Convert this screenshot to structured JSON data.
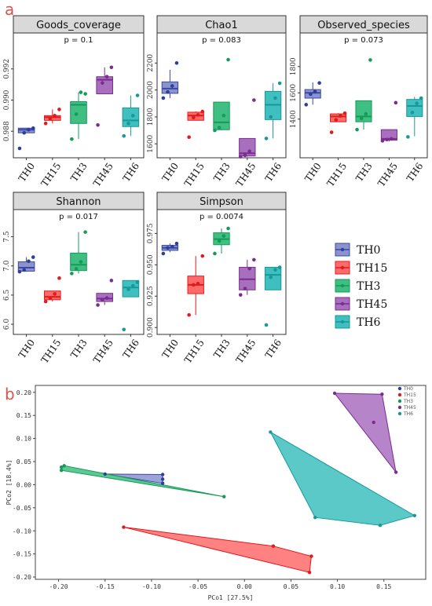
{
  "panel_labels": {
    "a": "a",
    "b": "b"
  },
  "groups": [
    "TH0",
    "TH15",
    "TH3",
    "TH45",
    "TH6"
  ],
  "colors": {
    "TH0": {
      "fill": "#8b93cf",
      "stroke": "#3b4aa0",
      "dot": "#2f3e9a"
    },
    "TH15": {
      "fill": "#ff6b6b",
      "stroke": "#e01b1b",
      "dot": "#e01b1b"
    },
    "TH3": {
      "fill": "#3fbf82",
      "stroke": "#159b57",
      "dot": "#159b57"
    },
    "TH45": {
      "fill": "#a96fbf",
      "stroke": "#7a2d8f",
      "dot": "#7a2d8f"
    },
    "TH6": {
      "fill": "#3fbfbf",
      "stroke": "#17999a",
      "dot": "#17999a"
    }
  },
  "chart_data": [
    {
      "type": "box",
      "title": "Goods_coverage",
      "pvalue": "p = 0.1",
      "ylim": [
        0.9865,
        0.9935
      ],
      "yticks": [
        0.988,
        0.99,
        0.992
      ],
      "yticklabels": [
        "0.988",
        "0.990",
        "0.992"
      ],
      "boxes": [
        {
          "group": "TH0",
          "q1": 0.9879,
          "median": 0.9881,
          "q3": 0.9882,
          "min": 0.9879,
          "max": 0.9882,
          "points": [
            0.9869,
            0.9879,
            0.9881,
            0.9882
          ]
        },
        {
          "group": "TH15",
          "q1": 0.9887,
          "median": 0.9889,
          "q3": 0.989,
          "min": 0.9885,
          "max": 0.9894,
          "points": [
            0.9885,
            0.9888,
            0.989,
            0.9894
          ]
        },
        {
          "group": "TH3",
          "q1": 0.9885,
          "median": 0.9897,
          "q3": 0.9899,
          "min": 0.9875,
          "max": 0.9905,
          "points": [
            0.9875,
            0.9891,
            0.9905,
            0.9904
          ]
        },
        {
          "group": "TH45",
          "q1": 0.9904,
          "median": 0.9913,
          "q3": 0.9915,
          "min": 0.9904,
          "max": 0.9921,
          "points": [
            0.9884,
            0.9911,
            0.9915,
            0.9921
          ]
        },
        {
          "group": "TH6",
          "q1": 0.9883,
          "median": 0.9887,
          "q3": 0.9895,
          "min": 0.9877,
          "max": 0.9903,
          "points": [
            0.9877,
            0.9885,
            0.989,
            0.9903
          ]
        }
      ]
    },
    {
      "type": "box",
      "title": "Chao1",
      "pvalue": "p = 0.083",
      "ylim": [
        1520,
        2330
      ],
      "yticks": [
        1600,
        1800,
        2000,
        2200
      ],
      "yticklabels": [
        "1600",
        "1800",
        "2000",
        "2200"
      ],
      "boxes": [
        {
          "group": "TH0",
          "q1": 1975,
          "median": 2010,
          "q3": 2060,
          "min": 1940,
          "max": 2150,
          "points": [
            1940,
            1985,
            2030,
            2200
          ]
        },
        {
          "group": "TH15",
          "q1": 1775,
          "median": 1810,
          "q3": 1835,
          "min": 1775,
          "max": 1840,
          "points": [
            1650,
            1795,
            1815,
            1840
          ]
        },
        {
          "group": "TH3",
          "q1": 1705,
          "median": 1760,
          "q3": 1910,
          "min": 1700,
          "max": 1910,
          "points": [
            1700,
            1720,
            1810,
            2225
          ]
        },
        {
          "group": "TH45",
          "q1": 1510,
          "median": 1530,
          "q3": 1640,
          "min": 1505,
          "max": 1640,
          "points": [
            1505,
            1515,
            1545,
            1925
          ]
        },
        {
          "group": "TH6",
          "q1": 1780,
          "median": 1890,
          "q3": 1990,
          "min": 1640,
          "max": 2050,
          "points": [
            1640,
            1800,
            1940,
            2050
          ]
        }
      ]
    },
    {
      "type": "box",
      "title": "Observed_species",
      "pvalue": "p = 0.073",
      "ylim": [
        1130,
        1960
      ],
      "yticks": [
        1400,
        1600,
        1800
      ],
      "yticklabels": [
        "1400",
        "1600",
        "1800"
      ],
      "boxes": [
        {
          "group": "TH0",
          "q1": 1560,
          "median": 1600,
          "q3": 1625,
          "min": 1510,
          "max": 1680,
          "points": [
            1510,
            1590,
            1610,
            1675
          ]
        },
        {
          "group": "TH15",
          "q1": 1380,
          "median": 1420,
          "q3": 1440,
          "min": 1380,
          "max": 1445,
          "points": [
            1300,
            1395,
            1425,
            1445
          ]
        },
        {
          "group": "TH3",
          "q1": 1380,
          "median": 1420,
          "q3": 1540,
          "min": 1320,
          "max": 1540,
          "points": [
            1320,
            1405,
            1440,
            1850
          ]
        },
        {
          "group": "TH45",
          "q1": 1240,
          "median": 1250,
          "q3": 1320,
          "min": 1230,
          "max": 1320,
          "points": [
            1235,
            1245,
            1250,
            1525
          ]
        },
        {
          "group": "TH6",
          "q1": 1420,
          "median": 1500,
          "q3": 1550,
          "min": 1270,
          "max": 1570,
          "points": [
            1265,
            1450,
            1520,
            1560
          ]
        }
      ]
    },
    {
      "type": "box",
      "title": "Shannon",
      "pvalue": "p = 0.017",
      "ylim": [
        5.88,
        7.75
      ],
      "yticks": [
        6.0,
        6.5,
        7.0,
        7.5
      ],
      "yticklabels": [
        "6.0",
        "6.5",
        "7.0",
        "7.5"
      ],
      "boxes": [
        {
          "group": "TH0",
          "q1": 6.91,
          "median": 6.97,
          "q3": 7.07,
          "min": 6.9,
          "max": 7.15,
          "points": [
            6.9,
            6.93,
            7.08,
            7.15
          ]
        },
        {
          "group": "TH15",
          "q1": 6.42,
          "median": 6.47,
          "q3": 6.57,
          "min": 6.39,
          "max": 6.57,
          "points": [
            6.39,
            6.45,
            6.52,
            6.79
          ]
        },
        {
          "group": "TH3",
          "q1": 6.92,
          "median": 7.02,
          "q3": 7.22,
          "min": 6.87,
          "max": 7.58,
          "points": [
            6.87,
            6.95,
            7.07,
            7.58
          ]
        },
        {
          "group": "TH45",
          "q1": 6.39,
          "median": 6.44,
          "q3": 6.53,
          "min": 6.33,
          "max": 6.53,
          "points": [
            6.33,
            6.42,
            6.45,
            6.75
          ]
        },
        {
          "group": "TH6",
          "q1": 6.47,
          "median": 6.63,
          "q3": 6.75,
          "min": 6.47,
          "max": 6.75,
          "points": [
            5.91,
            6.6,
            6.66,
            6.72
          ]
        }
      ]
    },
    {
      "type": "box",
      "title": "Simpson",
      "pvalue": "p = 0.0074",
      "ylim": [
        0.897,
        0.984
      ],
      "yticks": [
        0.9,
        0.925,
        0.95,
        0.975
      ],
      "yticklabels": [
        "0.900",
        "0.925",
        "0.950",
        "0.975"
      ],
      "boxes": [
        {
          "group": "TH0",
          "q1": 0.9615,
          "median": 0.9635,
          "q3": 0.9655,
          "min": 0.96,
          "max": 0.967,
          "points": [
            0.959,
            0.9635,
            0.9645,
            0.967
          ]
        },
        {
          "group": "TH15",
          "q1": 0.927,
          "median": 0.934,
          "q3": 0.941,
          "min": 0.91,
          "max": 0.957,
          "points": [
            0.91,
            0.934,
            0.935,
            0.957
          ]
        },
        {
          "group": "TH3",
          "q1": 0.966,
          "median": 0.9705,
          "q3": 0.9755,
          "min": 0.959,
          "max": 0.979,
          "points": [
            0.959,
            0.969,
            0.973,
            0.979
          ]
        },
        {
          "group": "TH45",
          "q1": 0.93,
          "median": 0.9385,
          "q3": 0.948,
          "min": 0.926,
          "max": 0.954,
          "points": [
            0.926,
            0.931,
            0.947,
            0.954
          ]
        },
        {
          "group": "TH6",
          "q1": 0.93,
          "median": 0.942,
          "q3": 0.948,
          "min": 0.93,
          "max": 0.948,
          "points": [
            0.902,
            0.94,
            0.946,
            0.948
          ]
        }
      ]
    },
    {
      "type": "scatter",
      "xlabel": "PCo1 [27.5%]",
      "ylabel": "PCo2 [18.4%]",
      "xlim": [
        -0.225,
        0.195
      ],
      "ylim": [
        -0.205,
        0.215
      ],
      "xticks": [
        -0.2,
        -0.15,
        -0.1,
        -0.05,
        0.0,
        0.05,
        0.1,
        0.15
      ],
      "xticklabels": [
        "-0.20",
        "-0.15",
        "-0.10",
        "-0.05",
        "0.00",
        "0.05",
        "0.10",
        "0.15"
      ],
      "yticks": [
        -0.2,
        -0.15,
        -0.1,
        -0.05,
        0.0,
        0.05,
        0.1,
        0.15,
        0.2
      ],
      "yticklabels": [
        "-0.20",
        "-0.15",
        "-0.10",
        "-0.05",
        "0.00",
        "0.05",
        "0.10",
        "0.15",
        "0.20"
      ],
      "legend_position": "top-right",
      "series": [
        {
          "name": "TH0",
          "points": [
            [
              -0.15,
              0.023
            ],
            [
              -0.088,
              0.022
            ],
            [
              -0.088,
              0.012
            ],
            [
              -0.088,
              0.003
            ]
          ],
          "hull": [
            [
              -0.15,
              0.023
            ],
            [
              -0.088,
              0.022
            ],
            [
              -0.088,
              0.003
            ]
          ]
        },
        {
          "name": "TH15",
          "points": [
            [
              -0.13,
              -0.092
            ],
            [
              0.031,
              -0.133
            ],
            [
              0.072,
              -0.155
            ],
            [
              0.07,
              -0.19
            ]
          ],
          "hull": [
            [
              -0.13,
              -0.092
            ],
            [
              0.031,
              -0.133
            ],
            [
              0.072,
              -0.155
            ],
            [
              0.07,
              -0.19
            ]
          ]
        },
        {
          "name": "TH3",
          "points": [
            [
              -0.197,
              0.038
            ],
            [
              -0.197,
              0.031
            ],
            [
              -0.194,
              0.041
            ],
            [
              -0.022,
              -0.026
            ]
          ],
          "hull": [
            [
              -0.197,
              0.038
            ],
            [
              -0.194,
              0.041
            ],
            [
              -0.022,
              -0.026
            ],
            [
              -0.197,
              0.031
            ]
          ]
        },
        {
          "name": "TH45",
          "points": [
            [
              0.097,
              0.198
            ],
            [
              0.148,
              0.196
            ],
            [
              0.139,
              0.135
            ],
            [
              0.163,
              0.027
            ]
          ],
          "hull": [
            [
              0.097,
              0.198
            ],
            [
              0.148,
              0.196
            ],
            [
              0.163,
              0.027
            ]
          ]
        },
        {
          "name": "TH6",
          "points": [
            [
              0.028,
              0.114
            ],
            [
              0.183,
              -0.067
            ],
            [
              0.146,
              -0.088
            ],
            [
              0.076,
              -0.071
            ]
          ],
          "hull": [
            [
              0.028,
              0.114
            ],
            [
              0.183,
              -0.067
            ],
            [
              0.146,
              -0.088
            ],
            [
              0.076,
              -0.071
            ]
          ]
        }
      ]
    }
  ]
}
